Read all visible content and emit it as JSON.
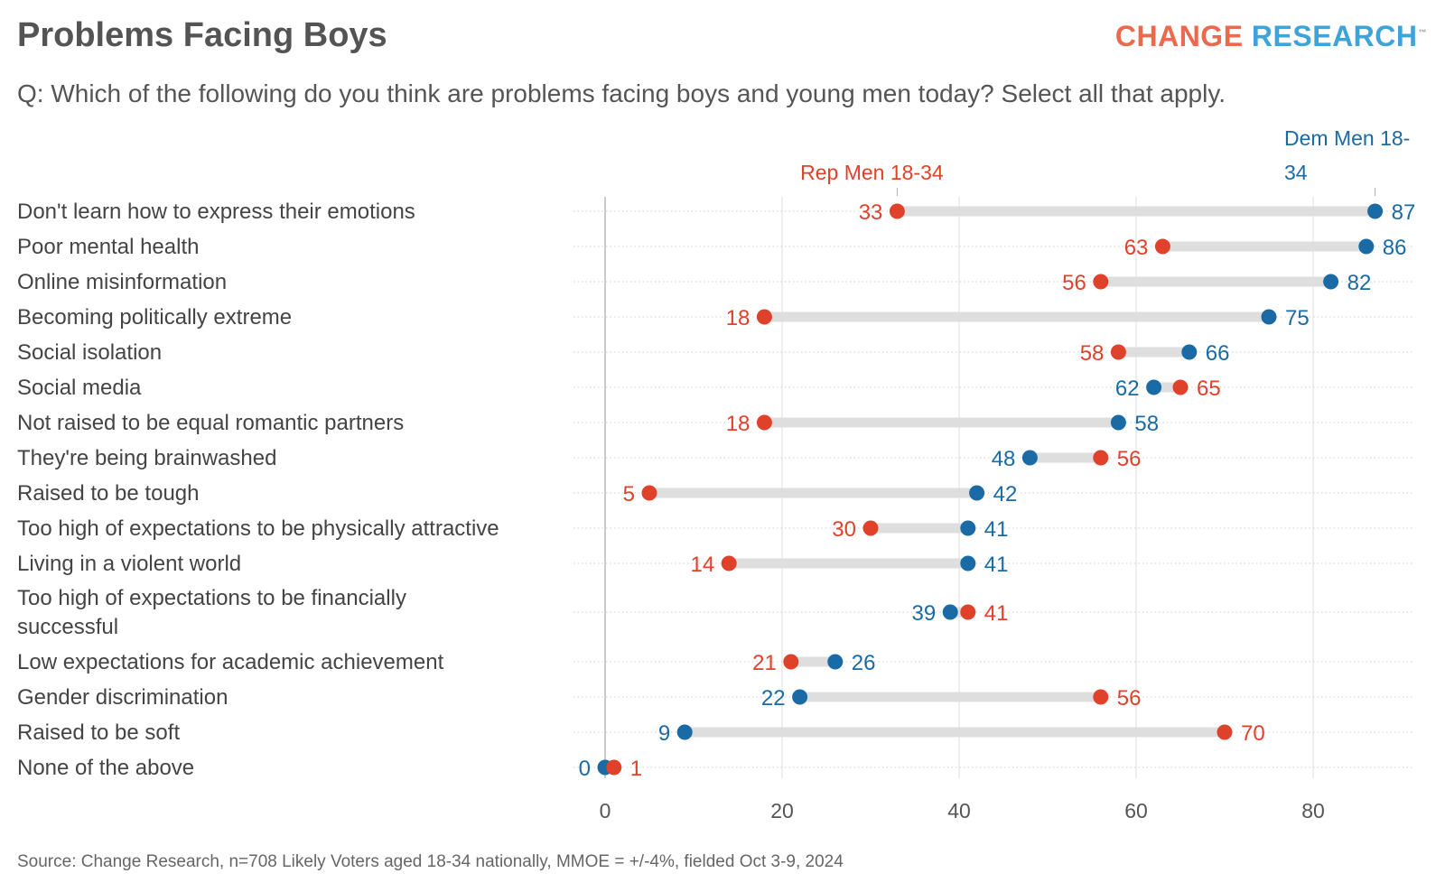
{
  "title": "Problems Facing Boys",
  "logo": {
    "word1": "CHANGE",
    "word2": "RESEARCH",
    "tm": "™",
    "color1": "#ea6a4e",
    "color2": "#3ea3d8"
  },
  "subtitle": "Q: Which of the following do you think are problems facing boys and young men today? Select all that apply.",
  "source": "Source: Change Research, n=708 Likely Voters aged 18-34 nationally, MMOE = +/-4%, fielded Oct 3-9, 2024",
  "chart_data": {
    "type": "dumbbell",
    "xlim": [
      0,
      90
    ],
    "x_ticks": [
      0,
      20,
      40,
      60,
      80
    ],
    "grid": true,
    "legend_placement": "top-labels",
    "series": [
      {
        "name": "Rep Men 18-34",
        "color": "#e0412b",
        "values": [
          33,
          63,
          56,
          18,
          58,
          65,
          18,
          56,
          5,
          30,
          14,
          41,
          21,
          56,
          70,
          1
        ]
      },
      {
        "name": "Dem Men 18-34",
        "name_lines": [
          "Dem Men 18-",
          "34"
        ],
        "color": "#1a6aa5",
        "values": [
          87,
          86,
          82,
          75,
          66,
          62,
          58,
          48,
          42,
          41,
          41,
          39,
          26,
          22,
          9,
          0
        ]
      }
    ],
    "categories": [
      [
        "Don't learn how to express their emotions"
      ],
      [
        "Poor mental health"
      ],
      [
        "Online misinformation"
      ],
      [
        "Becoming politically extreme"
      ],
      [
        "Social isolation"
      ],
      [
        "Social media"
      ],
      [
        "Not raised to be equal romantic partners"
      ],
      [
        "They're being brainwashed"
      ],
      [
        "Raised to be tough"
      ],
      [
        "Too high of expectations to be physically attractive"
      ],
      [
        "Living in a violent world"
      ],
      [
        "Too high of expectations to be financially",
        "successful"
      ],
      [
        "Low expectations for academic achievement"
      ],
      [
        "Gender discrimination"
      ],
      [
        "Raised to be soft"
      ],
      [
        "None of the above"
      ]
    ]
  }
}
